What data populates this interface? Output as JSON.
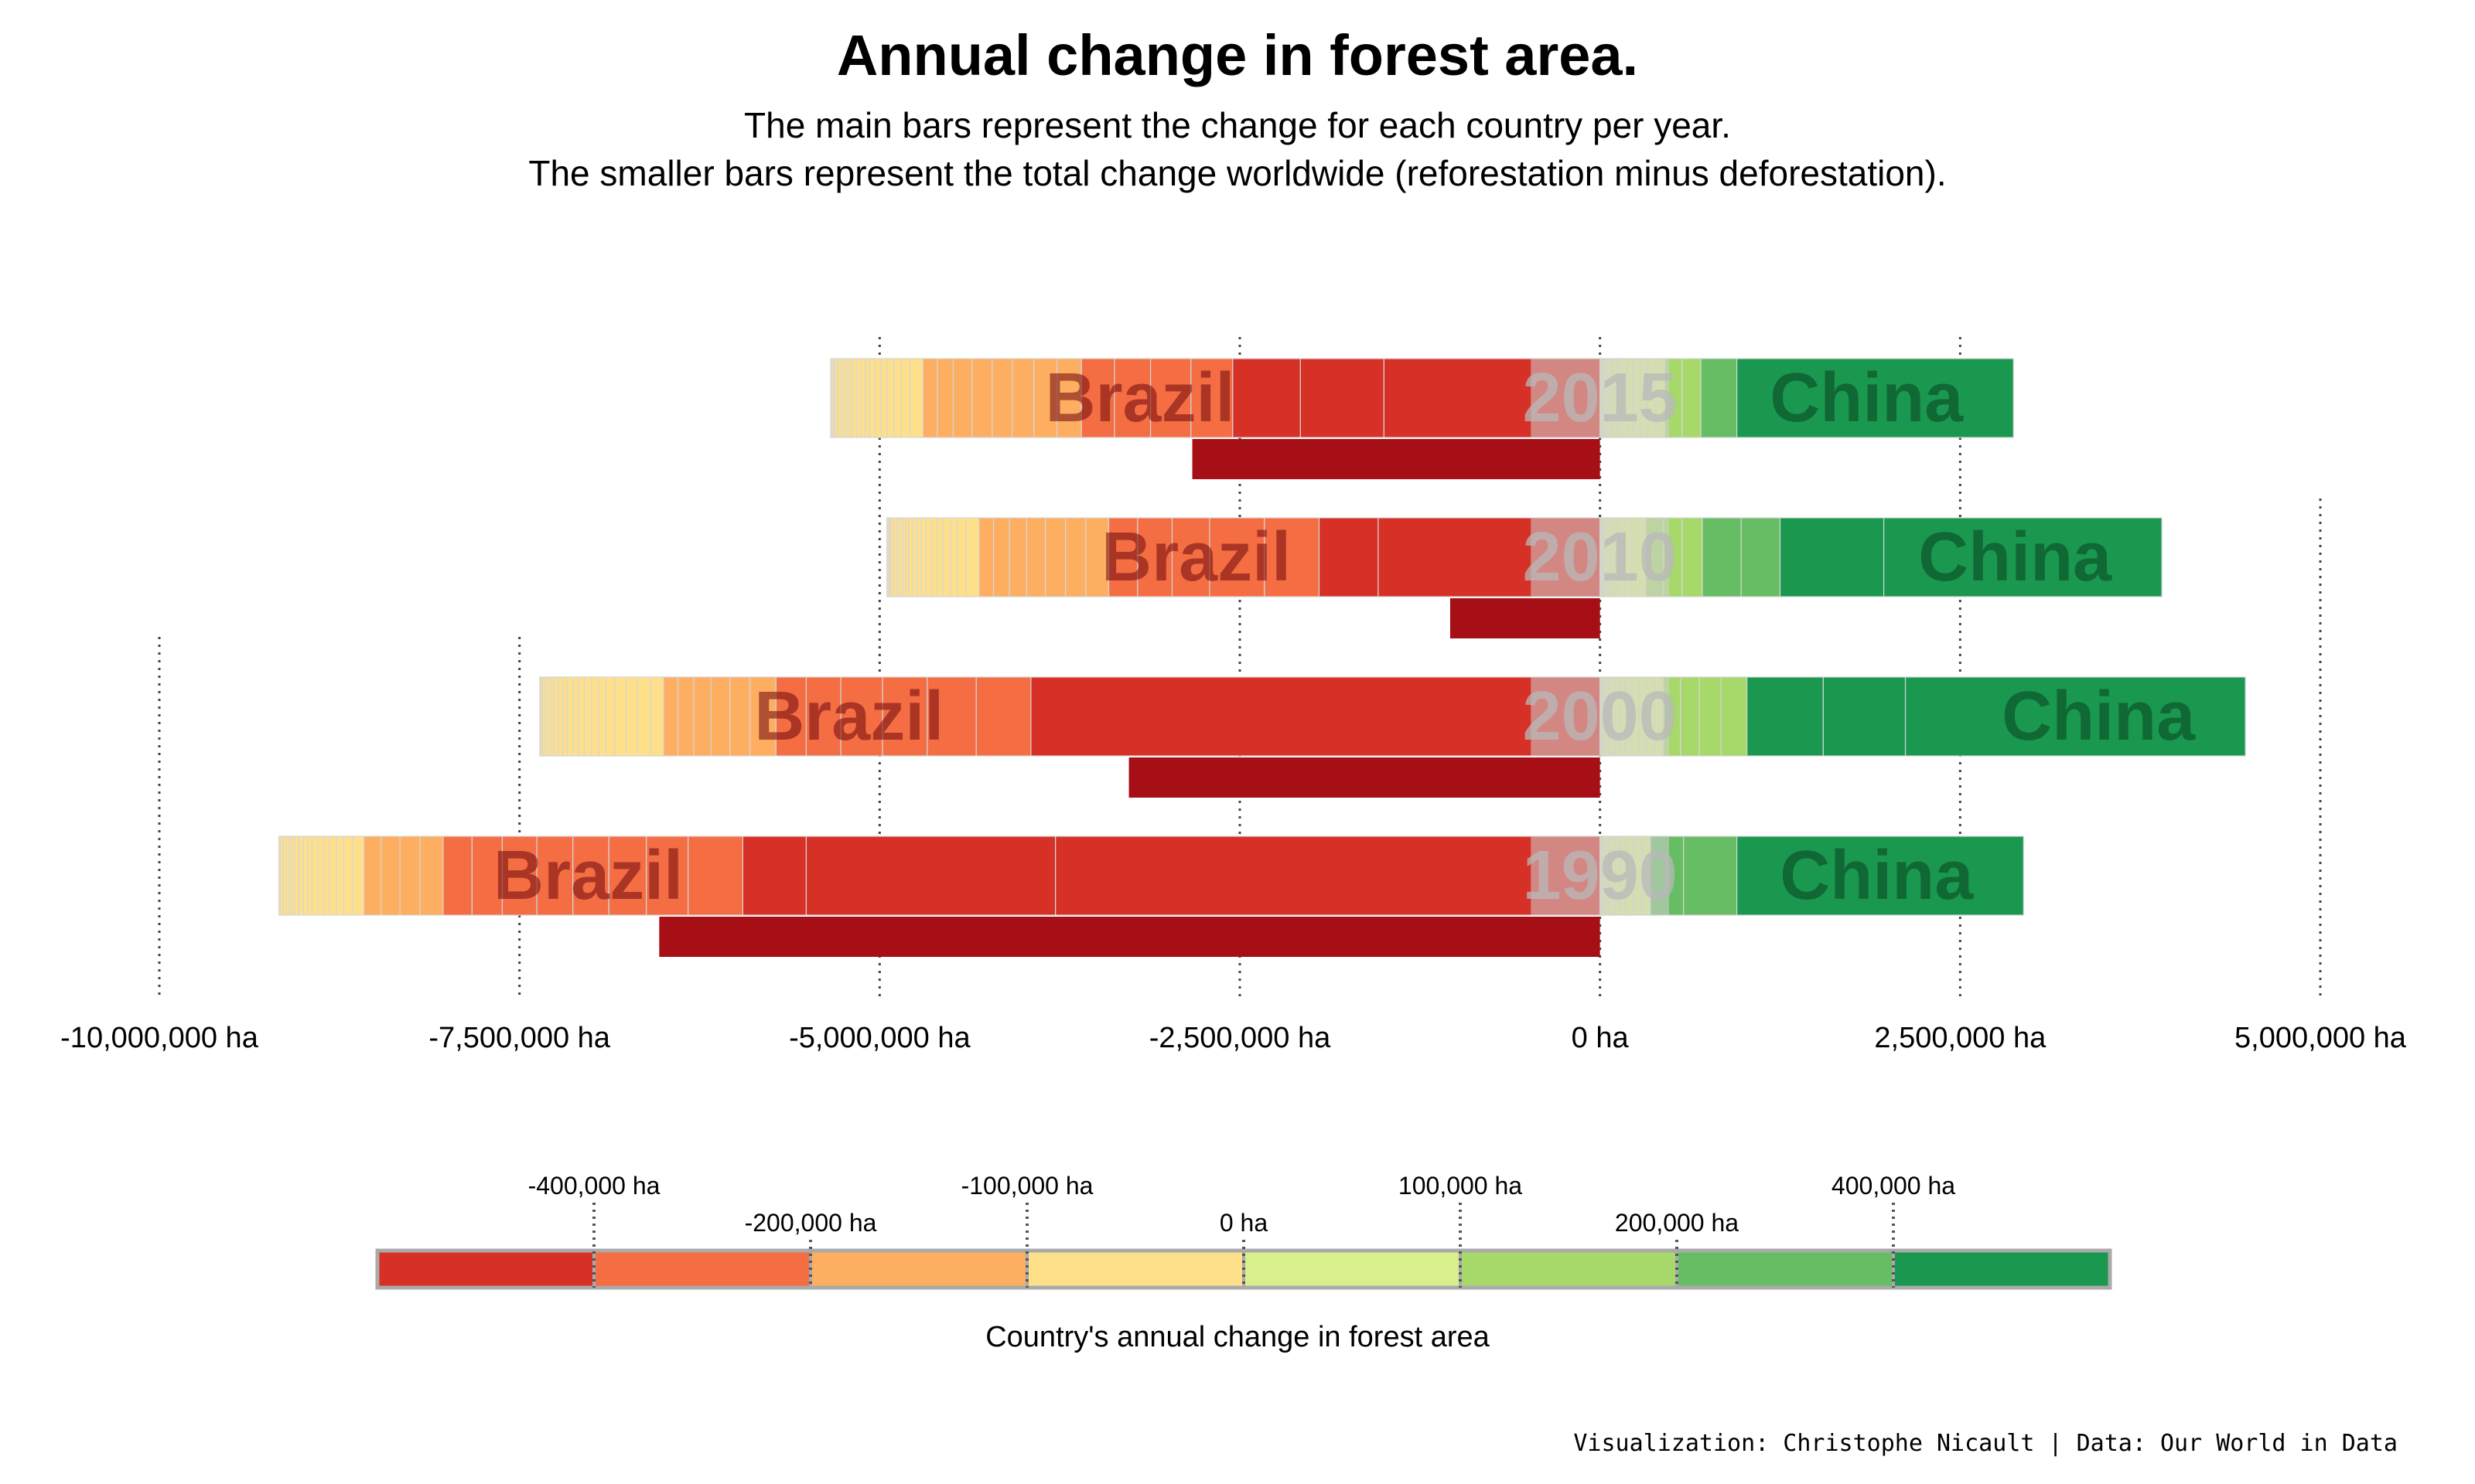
{
  "chart_data": {
    "type": "bar",
    "title": "Annual change in forest area.",
    "subtitle_lines": [
      "The main bars represent the change for each country per year.",
      "The smaller bars represent the total change worldwide (reforestation minus deforestation)."
    ],
    "x_unit": "ha",
    "xlim": [
      -10000000,
      5000000
    ],
    "x_ticks": [
      -10000000,
      -7500000,
      -5000000,
      -2500000,
      0,
      2500000,
      5000000
    ],
    "x_tick_labels": [
      "-10,000,000 ha",
      "-7,500,000 ha",
      "-5,000,000 ha",
      "-2,500,000 ha",
      "0 ha",
      "2,500,000 ha",
      "5,000,000 ha"
    ],
    "years": [
      {
        "year": "2015",
        "negative_label": "Brazil",
        "positive_label": "China",
        "world_total": -2830000,
        "negative_segments": [
          -1500000,
          -580000,
          -470000,
          -290000,
          -280000,
          -250000,
          -230000,
          -170000,
          -160000,
          -150000,
          -140000,
          -140000,
          -130000,
          -110000,
          -100000,
          -90000,
          -60000,
          -50000,
          -50000,
          -40000,
          -40000,
          -40000,
          -30000,
          -30000,
          -30000,
          -30000,
          -20000,
          -20000,
          -20000,
          -20000,
          -20000,
          -20000,
          -10000,
          -10000,
          -10000
        ],
        "positive_segments": [
          10000,
          10000,
          10000,
          20000,
          20000,
          20000,
          30000,
          30000,
          40000,
          40000,
          50000,
          50000,
          60000,
          60000,
          120000,
          130000,
          250000,
          1920000
        ]
      },
      {
        "year": "2010",
        "negative_label": "Brazil",
        "positive_label": "China",
        "world_total": -1040000,
        "negative_segments": [
          -1540000,
          -410000,
          -380000,
          -380000,
          -260000,
          -240000,
          -200000,
          -160000,
          -140000,
          -140000,
          -130000,
          -120000,
          -110000,
          -100000,
          -90000,
          -60000,
          -50000,
          -50000,
          -40000,
          -40000,
          -40000,
          -30000,
          -30000,
          -30000,
          -30000,
          -20000,
          -20000,
          -20000,
          -20000,
          -20000,
          -20000,
          -10000,
          -10000,
          -10000
        ],
        "positive_segments": [
          10000,
          10000,
          10000,
          20000,
          20000,
          30000,
          30000,
          40000,
          50000,
          100000,
          120000,
          130000,
          140000,
          270000,
          270000,
          720000,
          1930000
        ]
      },
      {
        "year": "2000",
        "negative_label": "Brazil",
        "positive_label": "China",
        "world_total": -3270000,
        "negative_segments": [
          -3950000,
          -380000,
          -340000,
          -310000,
          -290000,
          -240000,
          -210000,
          -180000,
          -140000,
          -130000,
          -120000,
          -110000,
          -100000,
          -90000,
          -90000,
          -80000,
          -80000,
          -60000,
          -50000,
          -50000,
          -50000,
          -40000,
          -40000,
          -40000,
          -30000,
          -30000,
          -30000,
          -20000,
          -20000,
          -20000,
          -20000,
          -10000,
          -10000
        ],
        "positive_segments": [
          10000,
          10000,
          20000,
          20000,
          20000,
          30000,
          30000,
          40000,
          40000,
          50000,
          50000,
          60000,
          60000,
          120000,
          130000,
          150000,
          180000,
          530000,
          570000,
          2360000
        ]
      },
      {
        "year": "1990",
        "negative_label": "Brazil",
        "positive_label": "China",
        "world_total": -6530000,
        "negative_segments": [
          -3780000,
          -1730000,
          -440000,
          -380000,
          -290000,
          -260000,
          -250000,
          -250000,
          -240000,
          -210000,
          -200000,
          -160000,
          -140000,
          -130000,
          -120000,
          -80000,
          -60000,
          -50000,
          -50000,
          -40000,
          -40000,
          -40000,
          -30000,
          -30000,
          -30000,
          -30000,
          -20000,
          -20000,
          -20000,
          -20000,
          -20000,
          -10000
        ],
        "positive_segments": [
          10000,
          10000,
          20000,
          20000,
          20000,
          30000,
          30000,
          40000,
          50000,
          60000,
          60000,
          230000,
          370000,
          1990000
        ]
      }
    ],
    "legend": {
      "title": "Country's annual change in forest area",
      "breaks": [
        -600000,
        -400000,
        -200000,
        -100000,
        0,
        100000,
        200000,
        400000,
        600000
      ],
      "labeled_breaks": [
        -400000,
        -200000,
        -100000,
        0,
        100000,
        200000,
        400000
      ],
      "break_labels": [
        "-400,000 ha",
        "-200,000 ha",
        "-100,000 ha",
        "0 ha",
        "100,000 ha",
        "200,000 ha",
        "400,000 ha"
      ],
      "colors": [
        "#d73027",
        "#f46d43",
        "#fdae61",
        "#fee08b",
        "#d9ef8b",
        "#a6d96a",
        "#66bd63",
        "#1a9850"
      ]
    },
    "world_bar_color": "#a50f15",
    "year_band_color": "#d0d0d0",
    "year_text_color": "#b8b8b8",
    "caption": "Visualization: Christophe Nicault | Data: Our World in Data"
  }
}
